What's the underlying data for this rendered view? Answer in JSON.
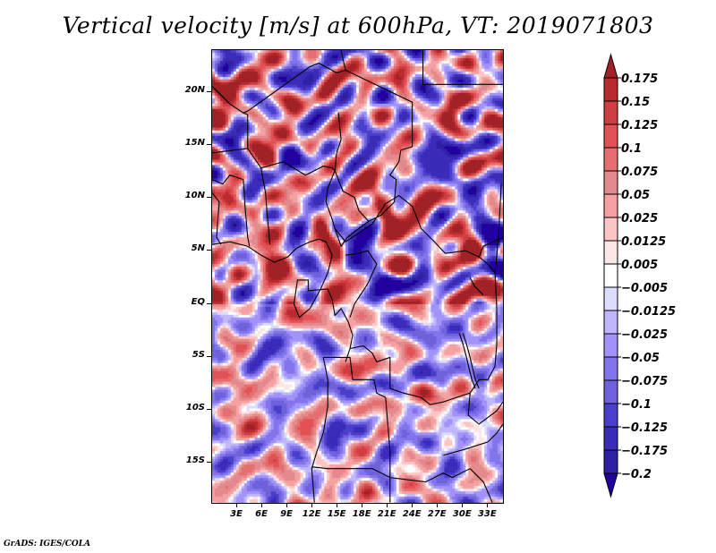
{
  "chart_data": {
    "type": "heatmap",
    "title": "Vertical velocity [m/s] at 600hPa, VT: 2019071803",
    "variable": "Vertical velocity",
    "units": "m/s",
    "level": "600hPa",
    "valid_time": "2019071803",
    "xlabel": "",
    "ylabel": "",
    "xlim": [
      0,
      35
    ],
    "ylim": [
      -19,
      24
    ],
    "x_ticks": [
      "3E",
      "6E",
      "9E",
      "12E",
      "15E",
      "18E",
      "21E",
      "24E",
      "27E",
      "30E",
      "33E"
    ],
    "x_tick_values": [
      3,
      6,
      9,
      12,
      15,
      18,
      21,
      24,
      27,
      30,
      33
    ],
    "y_ticks": [
      "20N",
      "15N",
      "10N",
      "5N",
      "EQ",
      "5S",
      "10S",
      "15S"
    ],
    "y_tick_values": [
      20,
      15,
      10,
      5,
      0,
      -5,
      -10,
      -15
    ],
    "colorbar": {
      "orientation": "vertical",
      "placement": "right",
      "labels": [
        "0.175",
        "0.15",
        "0.125",
        "0.1",
        "0.075",
        "0.05",
        "0.025",
        "0.0125",
        "0.005",
        "-0.005",
        "-0.0125",
        "-0.025",
        "-0.05",
        "-0.075",
        "-0.1",
        "-0.125",
        "-0.175",
        "-0.2"
      ],
      "levels": [
        0.175,
        0.15,
        0.125,
        0.1,
        0.075,
        0.05,
        0.025,
        0.0125,
        0.005,
        -0.005,
        -0.0125,
        -0.025,
        -0.05,
        -0.075,
        -0.1,
        -0.125,
        -0.175,
        -0.2
      ],
      "colors": [
        "#a02226",
        "#b92b2e",
        "#cf3f42",
        "#e25254",
        "#e56e70",
        "#e28a8c",
        "#f5a0a1",
        "#fdc6c6",
        "#fde6e6",
        "#ffffff",
        "#dcdcfc",
        "#c0b6fb",
        "#a293fb",
        "#8275ec",
        "#6f61da",
        "#4a3fcd",
        "#3a2cb8",
        "#2e22a4",
        "#2200a0"
      ],
      "extend": "both"
    },
    "features": [
      {
        "name": "strong ascent band",
        "approx_lon": 14,
        "approx_lat": 6,
        "sign": "positive"
      },
      {
        "name": "strong ascent band",
        "approx_lon": 20.5,
        "approx_lat": 9,
        "sign": "positive"
      },
      {
        "name": "ascent region",
        "approx_lon": 4,
        "approx_lat": 22,
        "sign": "positive"
      },
      {
        "name": "ascent region",
        "approx_lon": 2,
        "approx_lat": 3,
        "sign": "positive"
      }
    ]
  },
  "footer": "GrADS: IGES/COLA"
}
